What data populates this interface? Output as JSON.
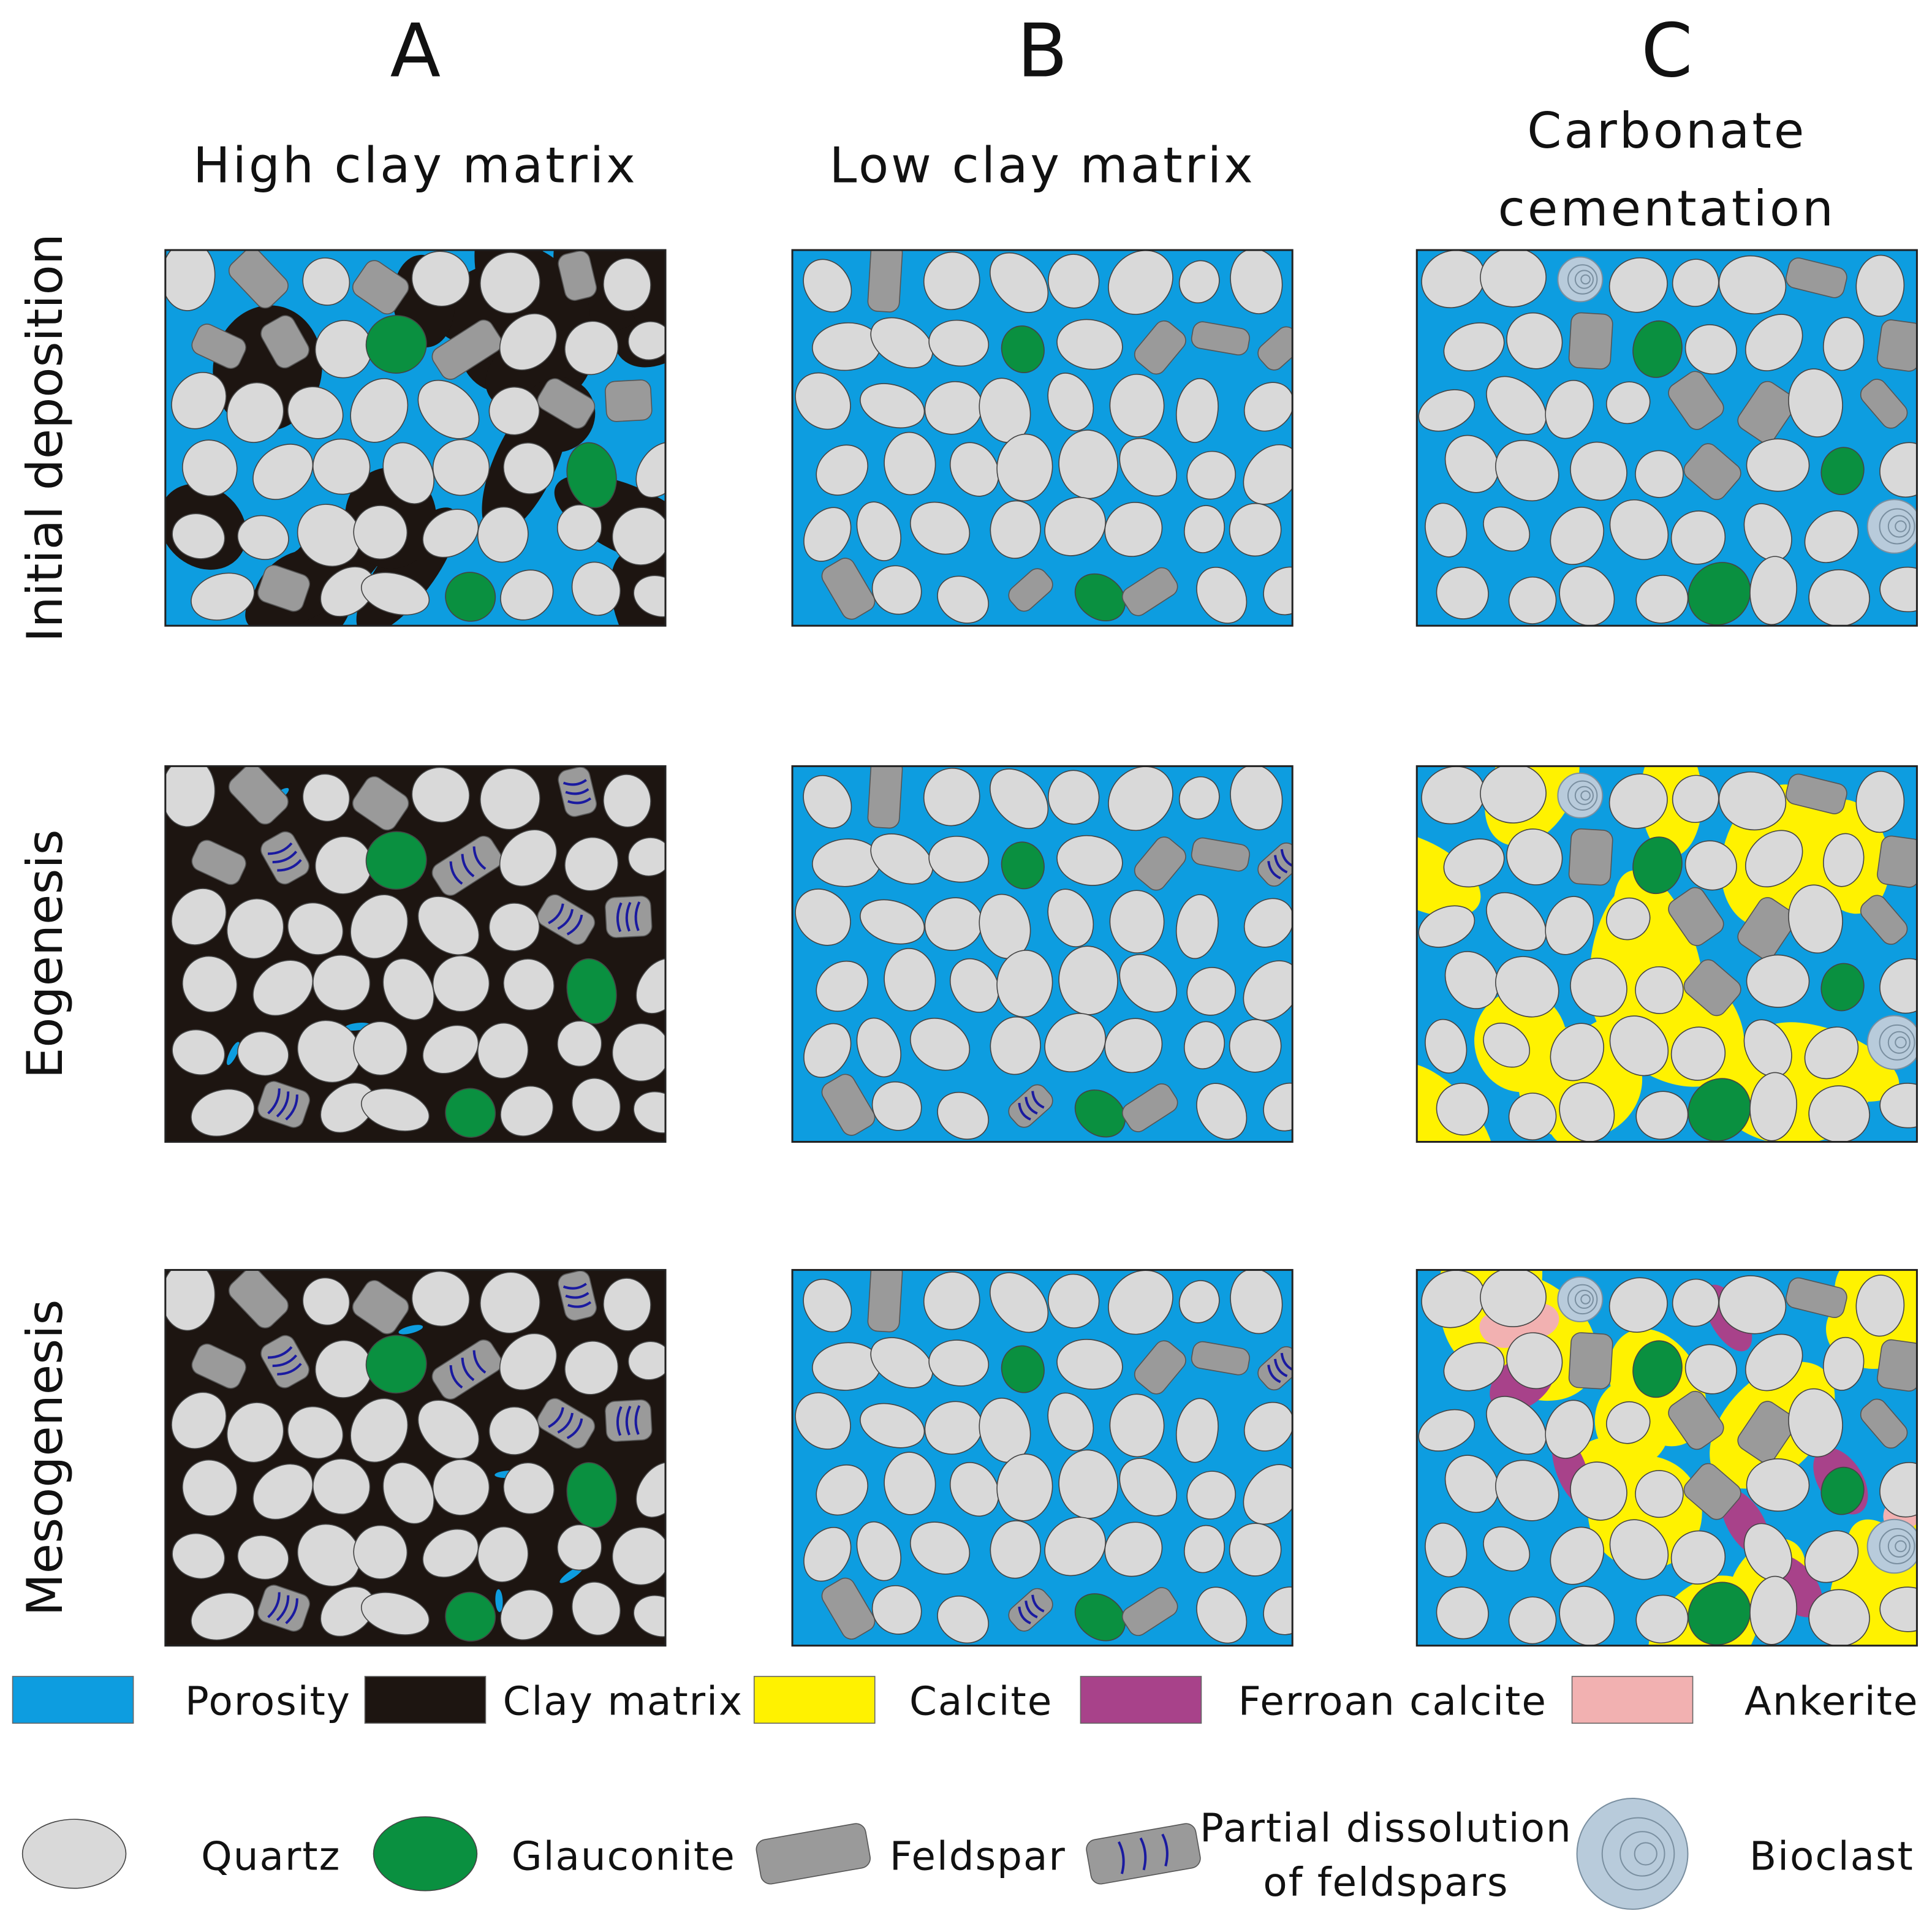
{
  "columns": [
    {
      "letter": "A",
      "title_lines": [
        "High clay matrix"
      ]
    },
    {
      "letter": "B",
      "title_lines": [
        "Low clay matrix"
      ]
    },
    {
      "letter": "C",
      "title_lines": [
        "Carbonate",
        "cementation"
      ]
    }
  ],
  "rows": [
    {
      "label": "Initial deposition"
    },
    {
      "label": "Eogenesis"
    },
    {
      "label": "Mesogenesis"
    }
  ],
  "legend": {
    "cements": [
      {
        "label": "Porosity"
      },
      {
        "label": "Clay matrix"
      },
      {
        "label": "Calcite"
      },
      {
        "label": "Ferroan calcite"
      },
      {
        "label": "Ankerite"
      }
    ],
    "grains": [
      {
        "label_lines": [
          "Quartz"
        ]
      },
      {
        "label_lines": [
          "Glauconite"
        ]
      },
      {
        "label_lines": [
          "Feldspar"
        ]
      },
      {
        "label_lines": [
          "Partial dissolution",
          "of feldspars"
        ]
      },
      {
        "label_lines": [
          "Bioclast"
        ]
      }
    ]
  }
}
